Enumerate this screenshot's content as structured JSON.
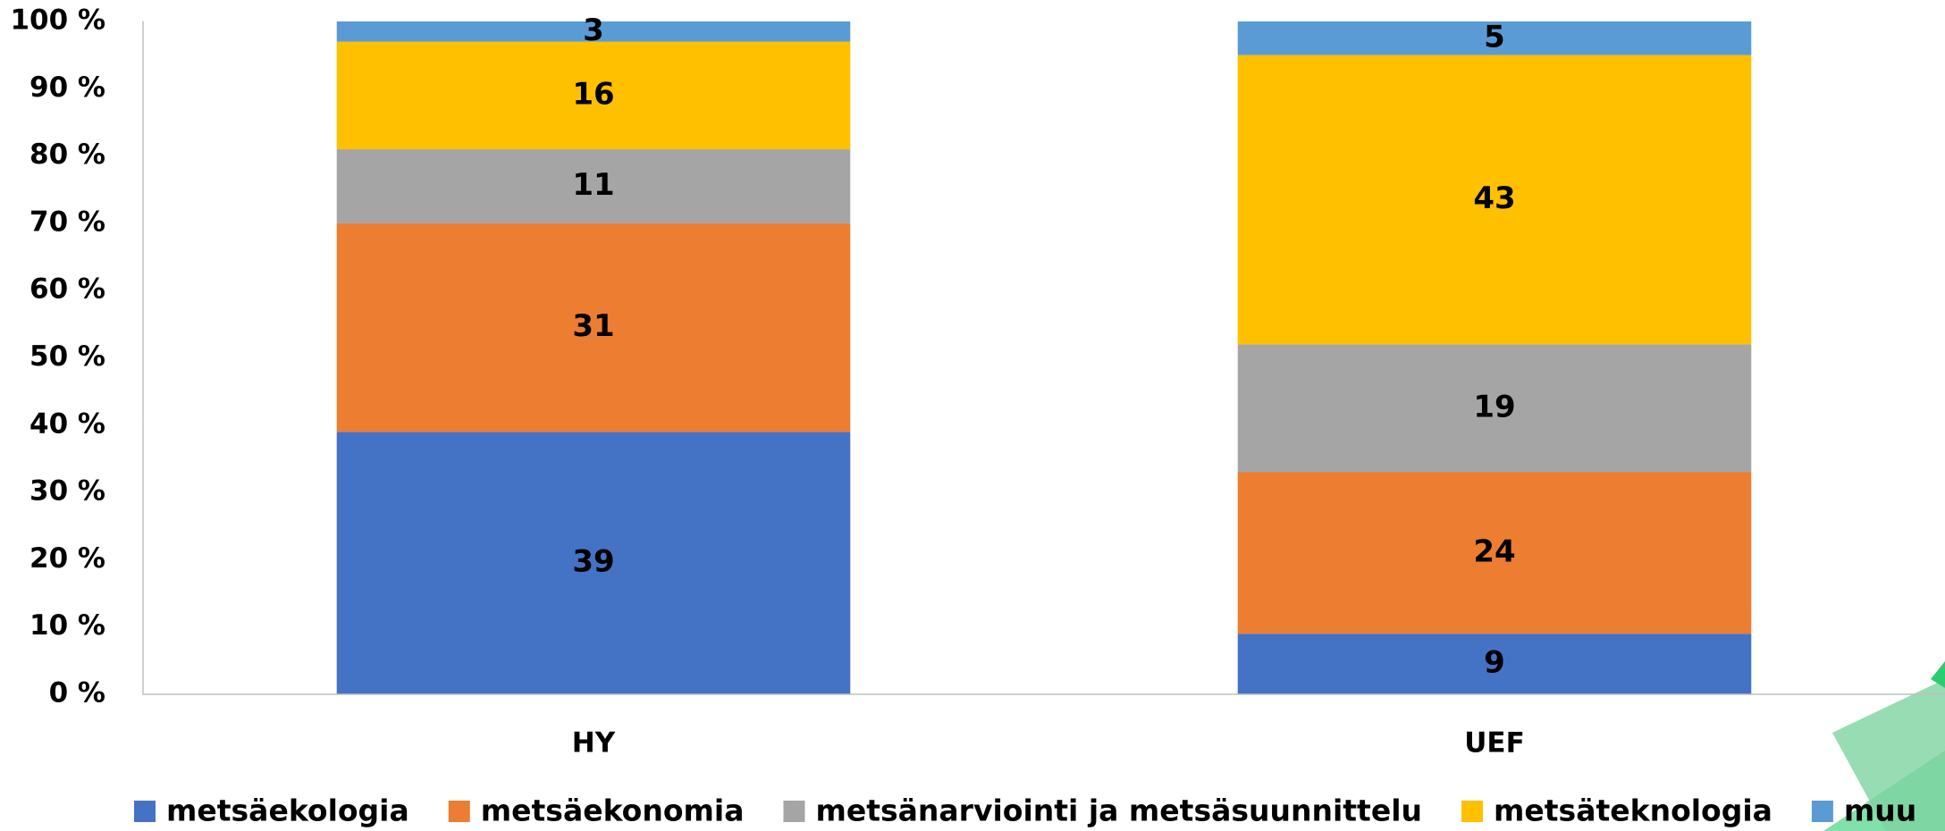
{
  "chart_data": {
    "type": "stacked_bar_percent",
    "categories": [
      "HY",
      "UEF"
    ],
    "series": [
      {
        "name": "metsäekologia",
        "color": "#4472c4",
        "values": [
          39,
          9
        ]
      },
      {
        "name": "metsäekonomia",
        "color": "#ed7d31",
        "values": [
          31,
          24
        ]
      },
      {
        "name": "metsänarviointi ja metsäsuunnittelu",
        "color": "#a5a5a5",
        "values": [
          11,
          19
        ]
      },
      {
        "name": "metsäteknologia",
        "color": "#ffc000",
        "values": [
          16,
          43
        ]
      },
      {
        "name": "muu",
        "color": "#5b9bd5",
        "values": [
          3,
          5
        ]
      }
    ],
    "ylim": [
      0,
      100
    ],
    "yticks": [
      {
        "value": 0,
        "label": "0 %"
      },
      {
        "value": 10,
        "label": "10 %"
      },
      {
        "value": 20,
        "label": "20 %"
      },
      {
        "value": 30,
        "label": "30 %"
      },
      {
        "value": 40,
        "label": "40 %"
      },
      {
        "value": 50,
        "label": "50 %"
      },
      {
        "value": 60,
        "label": "60 %"
      },
      {
        "value": 70,
        "label": "70 %"
      },
      {
        "value": 80,
        "label": "80 %"
      },
      {
        "value": 90,
        "label": "90 %"
      },
      {
        "value": 100,
        "label": "100 %"
      }
    ],
    "grid": false,
    "legend": "bottom"
  }
}
